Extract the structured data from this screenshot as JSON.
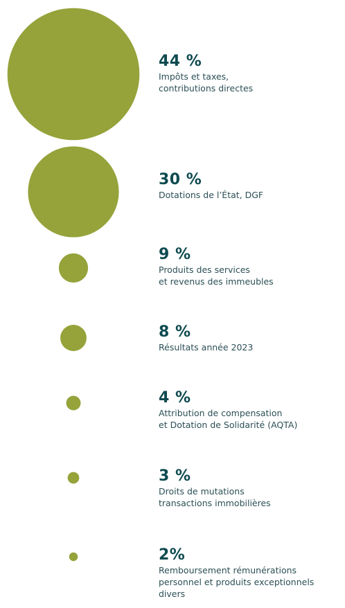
{
  "chart_data": {
    "type": "bubble",
    "color": "#95a33a",
    "categories": [
      "Impôts et taxes,\ncontributions directes",
      "Dotations de l’État, DGF",
      "Produits des services\net revenus des immeubles",
      "Résultats année 2023",
      "Attribution de compensation\net Dotation de Solidarité (AQTA)",
      "Droits de mutations\ntransactions immobilières",
      "Remboursement rémunérations\npersonnel et produits exceptionnels\ndivers"
    ],
    "values": [
      44,
      30,
      9,
      8,
      4,
      3,
      2
    ],
    "value_labels": [
      "44 %",
      "30 %",
      "9 %",
      "8 %",
      "4 %",
      "3 %",
      "2%"
    ]
  }
}
